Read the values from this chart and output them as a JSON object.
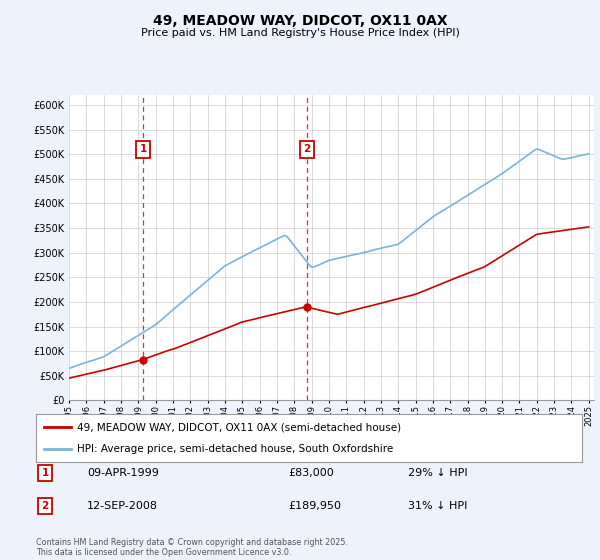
{
  "title": "49, MEADOW WAY, DIDCOT, OX11 0AX",
  "subtitle": "Price paid vs. HM Land Registry's House Price Index (HPI)",
  "yticks": [
    0,
    50000,
    100000,
    150000,
    200000,
    250000,
    300000,
    350000,
    400000,
    450000,
    500000,
    550000,
    600000
  ],
  "hpi_color": "#7ab4d8",
  "price_color": "#cc0000",
  "transaction1_date": "09-APR-1999",
  "transaction1_price": "£83,000",
  "transaction1_hpi": "29% ↓ HPI",
  "transaction2_date": "12-SEP-2008",
  "transaction2_price": "£189,950",
  "transaction2_hpi": "31% ↓ HPI",
  "t1_year": 1999.27,
  "t1_price": 83000,
  "t2_year": 2008.71,
  "t2_price": 189950,
  "legend1": "49, MEADOW WAY, DIDCOT, OX11 0AX (semi-detached house)",
  "legend2": "HPI: Average price, semi-detached house, South Oxfordshire",
  "footer": "Contains HM Land Registry data © Crown copyright and database right 2025.\nThis data is licensed under the Open Government Licence v3.0.",
  "background_color": "#eef2fb",
  "plot_bg_color": "#ffffff",
  "grid_color": "#cccccc"
}
